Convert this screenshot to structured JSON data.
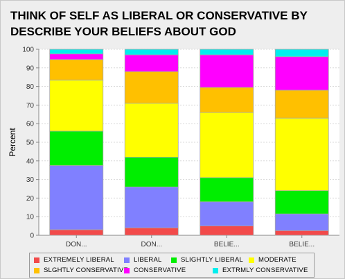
{
  "title": "THINK OF SELF AS LIBERAL OR CONSERVATIVE BY DESCRIBE YOUR BELIEFS ABOUT GOD",
  "chart_data": {
    "type": "bar",
    "stacked": true,
    "title": "THINK OF SELF AS LIBERAL OR CONSERVATIVE BY DESCRIBE YOUR BELIEFS ABOUT GOD",
    "ylabel": "Percent",
    "xlabel": "",
    "ylim": [
      0,
      100
    ],
    "yticks": [
      0,
      10,
      20,
      30,
      40,
      50,
      60,
      70,
      80,
      90,
      100
    ],
    "grid": true,
    "legend_position": "bottom",
    "categories": [
      "DON...",
      "DON...",
      "BELIE...",
      "BELIE..."
    ],
    "series": [
      {
        "name": "EXTREMELY LIBERAL",
        "color": "#f24a4a",
        "values": [
          3,
          4,
          5,
          2.5
        ]
      },
      {
        "name": "LIBERAL",
        "color": "#8080ff",
        "values": [
          34.5,
          22,
          13,
          9
        ]
      },
      {
        "name": "SLIGHTLY LIBERAL",
        "color": "#00ee00",
        "values": [
          18.5,
          16,
          13,
          12.5
        ]
      },
      {
        "name": "MODERATE",
        "color": "#ffff00",
        "values": [
          27.5,
          29,
          35,
          39
        ]
      },
      {
        "name": "SLGHTLY CONSERVATIVE",
        "color": "#ffc000",
        "values": [
          11,
          17,
          13.5,
          15
        ]
      },
      {
        "name": "CONSERVATIVE",
        "color": "#ff00ff",
        "values": [
          3,
          9,
          17.5,
          18
        ]
      },
      {
        "name": "EXTRMLY CONSERVATIVE",
        "color": "#00eeee",
        "values": [
          2.5,
          3,
          3,
          4
        ]
      }
    ]
  }
}
